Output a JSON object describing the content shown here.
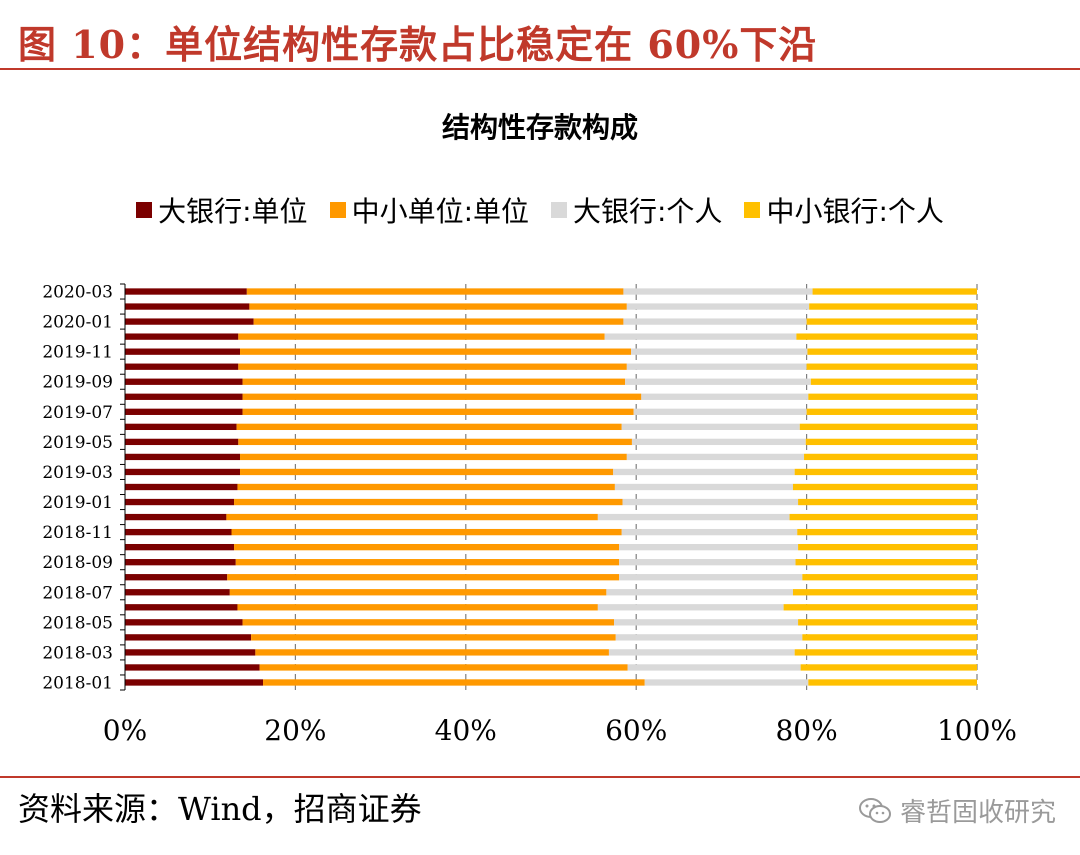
{
  "figure_title": "图 10：单位结构性存款占比稳定在 60%下沿",
  "source": "资料来源：Wind，招商证券",
  "watermark": "睿哲固收研究",
  "colors": {
    "accent": "#c0392b",
    "big_bank_corp": "#7b0000",
    "small_bank_corp": "#ff9900",
    "big_bank_personal": "#d9d9d9",
    "small_bank_personal": "#ffc000",
    "grid": "#7f7f7f"
  },
  "legend": [
    {
      "label": "大银行:单位",
      "color": "#7b0000"
    },
    {
      "label": "中小单位:单位",
      "color": "#ff9900"
    },
    {
      "label": "大银行:个人",
      "color": "#d9d9d9"
    },
    {
      "label": "中小银行:个人",
      "color": "#ffc000"
    }
  ],
  "chart_data": {
    "type": "bar",
    "orientation": "horizontal",
    "stacked": "percent",
    "title": "结构性存款构成",
    "categories": [
      "2018-01",
      "2018-02",
      "2018-03",
      "2018-04",
      "2018-05",
      "2018-06",
      "2018-07",
      "2018-08",
      "2018-09",
      "2018-10",
      "2018-11",
      "2018-12",
      "2019-01",
      "2019-02",
      "2019-03",
      "2019-04",
      "2019-05",
      "2019-06",
      "2019-07",
      "2019-08",
      "2019-09",
      "2019-10",
      "2019-11",
      "2019-12",
      "2020-01",
      "2020-02",
      "2020-03"
    ],
    "tick_labels": [
      "2018-01",
      "2018-03",
      "2018-05",
      "2018-07",
      "2018-09",
      "2018-11",
      "2019-01",
      "2019-03",
      "2019-05",
      "2019-07",
      "2019-09",
      "2019-11",
      "2020-01",
      "2020-03"
    ],
    "series": [
      {
        "name": "大银行:单位",
        "values": [
          16.2,
          15.8,
          15.3,
          14.8,
          13.8,
          13.2,
          12.3,
          12.0,
          13.0,
          12.8,
          12.5,
          11.9,
          12.8,
          13.2,
          13.5,
          13.5,
          13.3,
          13.1,
          13.8,
          13.8,
          13.8,
          13.3,
          13.5,
          13.3,
          15.1,
          14.6,
          14.3
        ]
      },
      {
        "name": "中小单位:单位",
        "values": [
          44.8,
          43.2,
          41.5,
          42.8,
          43.6,
          42.3,
          44.2,
          46.0,
          45.0,
          45.2,
          45.8,
          43.6,
          45.6,
          44.3,
          43.8,
          45.4,
          46.2,
          45.2,
          45.9,
          46.8,
          44.9,
          45.6,
          45.9,
          43.0,
          43.4,
          44.3,
          44.2
        ]
      },
      {
        "name": "大银行:个人",
        "values": [
          19.2,
          20.3,
          21.8,
          21.9,
          21.6,
          21.8,
          21.9,
          21.5,
          20.7,
          21.0,
          20.6,
          22.5,
          20.6,
          20.9,
          21.3,
          20.8,
          20.4,
          20.9,
          20.3,
          19.6,
          21.8,
          21.1,
          20.7,
          22.5,
          21.5,
          21.4,
          22.2
        ]
      },
      {
        "name": "中小银行:个人",
        "values": [
          19.8,
          20.7,
          21.4,
          20.5,
          21.0,
          22.7,
          21.6,
          20.5,
          21.3,
          21.0,
          21.1,
          22.0,
          21.0,
          21.6,
          21.4,
          20.3,
          20.1,
          20.8,
          20.0,
          19.8,
          19.5,
          20.0,
          19.9,
          21.2,
          20.0,
          19.7,
          19.3
        ]
      }
    ],
    "xlim": [
      0,
      100
    ],
    "x_ticks": [
      "0%",
      "20%",
      "40%",
      "60%",
      "80%",
      "100%"
    ],
    "grid": "vertical dashed",
    "legend_position": "top"
  }
}
